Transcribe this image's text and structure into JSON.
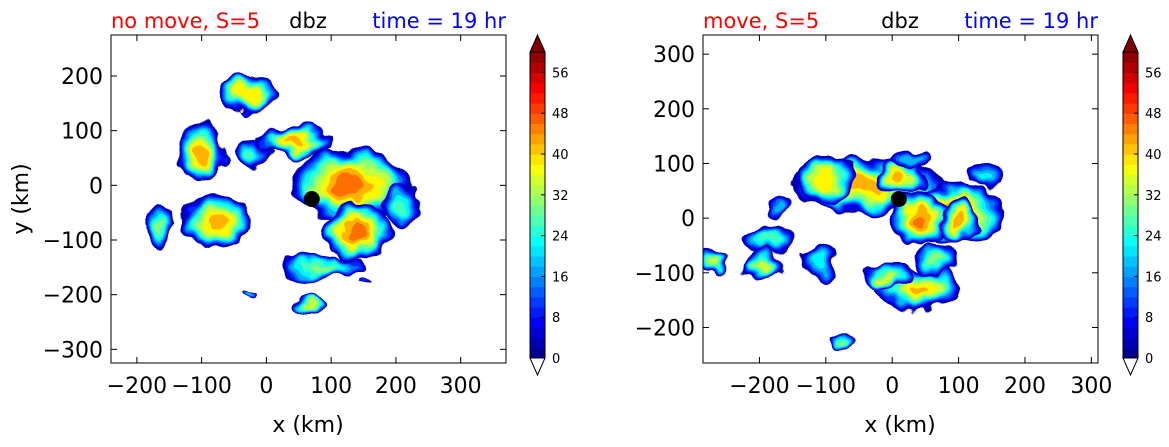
{
  "chart_data": [
    {
      "type": "heatmap",
      "title_left": "no move, S=5",
      "title_center": "dbz",
      "title_right": "time = 19 hr",
      "xlabel": "x (km)",
      "ylabel": "y (km)",
      "xlim": [
        -240,
        370
      ],
      "ylim": [
        -325,
        275
      ],
      "xticks": [
        "−200",
        "−100",
        "0",
        "100",
        "200",
        "300"
      ],
      "xtick_values": [
        -200,
        -100,
        0,
        100,
        200,
        300
      ],
      "yticks": [
        "200",
        "100",
        "0",
        "−100",
        "−200",
        "−300"
      ],
      "ytick_values": [
        200,
        100,
        0,
        -100,
        -200,
        -300
      ],
      "marker": {
        "x": 70,
        "y": -25
      },
      "cells": [
        {
          "x": -30,
          "y": 170,
          "rx": 45,
          "ry": 35,
          "peak": 40
        },
        {
          "x": -100,
          "y": 60,
          "rx": 35,
          "ry": 55,
          "peak": 44
        },
        {
          "x": 45,
          "y": 80,
          "rx": 60,
          "ry": 30,
          "peak": 42
        },
        {
          "x": -25,
          "y": 55,
          "rx": 30,
          "ry": 25,
          "peak": 28
        },
        {
          "x": 130,
          "y": 0,
          "rx": 95,
          "ry": 70,
          "peak": 48
        },
        {
          "x": 140,
          "y": -85,
          "rx": 50,
          "ry": 55,
          "peak": 48
        },
        {
          "x": -75,
          "y": -65,
          "rx": 55,
          "ry": 50,
          "peak": 42
        },
        {
          "x": -165,
          "y": -75,
          "rx": 22,
          "ry": 45,
          "peak": 30
        },
        {
          "x": 210,
          "y": -40,
          "rx": 30,
          "ry": 40,
          "peak": 28
        },
        {
          "x": 85,
          "y": -150,
          "rx": 70,
          "ry": 20,
          "peak": 30
        },
        {
          "x": 65,
          "y": -220,
          "rx": 28,
          "ry": 16,
          "peak": 36
        },
        {
          "x": -25,
          "y": -200,
          "rx": 15,
          "ry": 8,
          "peak": 20
        },
        {
          "x": 150,
          "y": -180,
          "rx": 10,
          "ry": 6,
          "peak": 12
        }
      ]
    },
    {
      "type": "heatmap",
      "title_left": "move, S=5",
      "title_center": "dbz",
      "title_right": "time = 19 hr",
      "xlabel": "x (km)",
      "ylabel": "",
      "xlim": [
        -285,
        310
      ],
      "ylim": [
        -265,
        335
      ],
      "xticks": [
        "−200",
        "−100",
        "0",
        "100",
        "200",
        "300"
      ],
      "xtick_values": [
        -200,
        -100,
        0,
        100,
        200,
        300
      ],
      "yticks": [
        "300",
        "200",
        "100",
        "0",
        "−100",
        "−200"
      ],
      "ytick_values": [
        300,
        200,
        100,
        0,
        -100,
        -200
      ],
      "marker": {
        "x": 10,
        "y": 35
      },
      "cells": [
        {
          "x": -40,
          "y": 60,
          "rx": 120,
          "ry": 50,
          "peak": 44
        },
        {
          "x": -100,
          "y": 70,
          "rx": 45,
          "ry": 45,
          "peak": 40
        },
        {
          "x": 10,
          "y": 75,
          "rx": 40,
          "ry": 30,
          "peak": 44
        },
        {
          "x": 90,
          "y": 10,
          "rx": 85,
          "ry": 55,
          "peak": 48
        },
        {
          "x": 40,
          "y": 0,
          "rx": 45,
          "ry": 50,
          "peak": 46
        },
        {
          "x": 100,
          "y": -5,
          "rx": 30,
          "ry": 40,
          "peak": 44
        },
        {
          "x": -185,
          "y": -40,
          "rx": 40,
          "ry": 25,
          "peak": 28
        },
        {
          "x": -195,
          "y": -85,
          "rx": 30,
          "ry": 30,
          "peak": 36
        },
        {
          "x": -265,
          "y": -80,
          "rx": 18,
          "ry": 25,
          "peak": 34
        },
        {
          "x": -110,
          "y": -80,
          "rx": 28,
          "ry": 35,
          "peak": 24
        },
        {
          "x": -170,
          "y": 20,
          "rx": 14,
          "ry": 25,
          "peak": 20
        },
        {
          "x": 40,
          "y": -130,
          "rx": 65,
          "ry": 40,
          "peak": 42
        },
        {
          "x": -10,
          "y": -105,
          "rx": 40,
          "ry": 25,
          "peak": 36
        },
        {
          "x": 65,
          "y": -75,
          "rx": 35,
          "ry": 30,
          "peak": 30
        },
        {
          "x": -70,
          "y": -225,
          "rx": 25,
          "ry": 15,
          "peak": 30
        },
        {
          "x": 30,
          "y": 105,
          "rx": 30,
          "ry": 16,
          "peak": 20
        },
        {
          "x": 140,
          "y": 80,
          "rx": 30,
          "ry": 22,
          "peak": 22
        }
      ]
    }
  ],
  "colorbar": {
    "min": 0,
    "max": 60,
    "ticks": [
      "56",
      "48",
      "40",
      "32",
      "24",
      "16",
      "8",
      "0"
    ],
    "tick_values": [
      56,
      48,
      40,
      32,
      24,
      16,
      8,
      0
    ]
  },
  "colors": {
    "title_left": "#ff0000",
    "title_center": "#000000",
    "title_right": "#0000ff",
    "marker": "#000000"
  }
}
